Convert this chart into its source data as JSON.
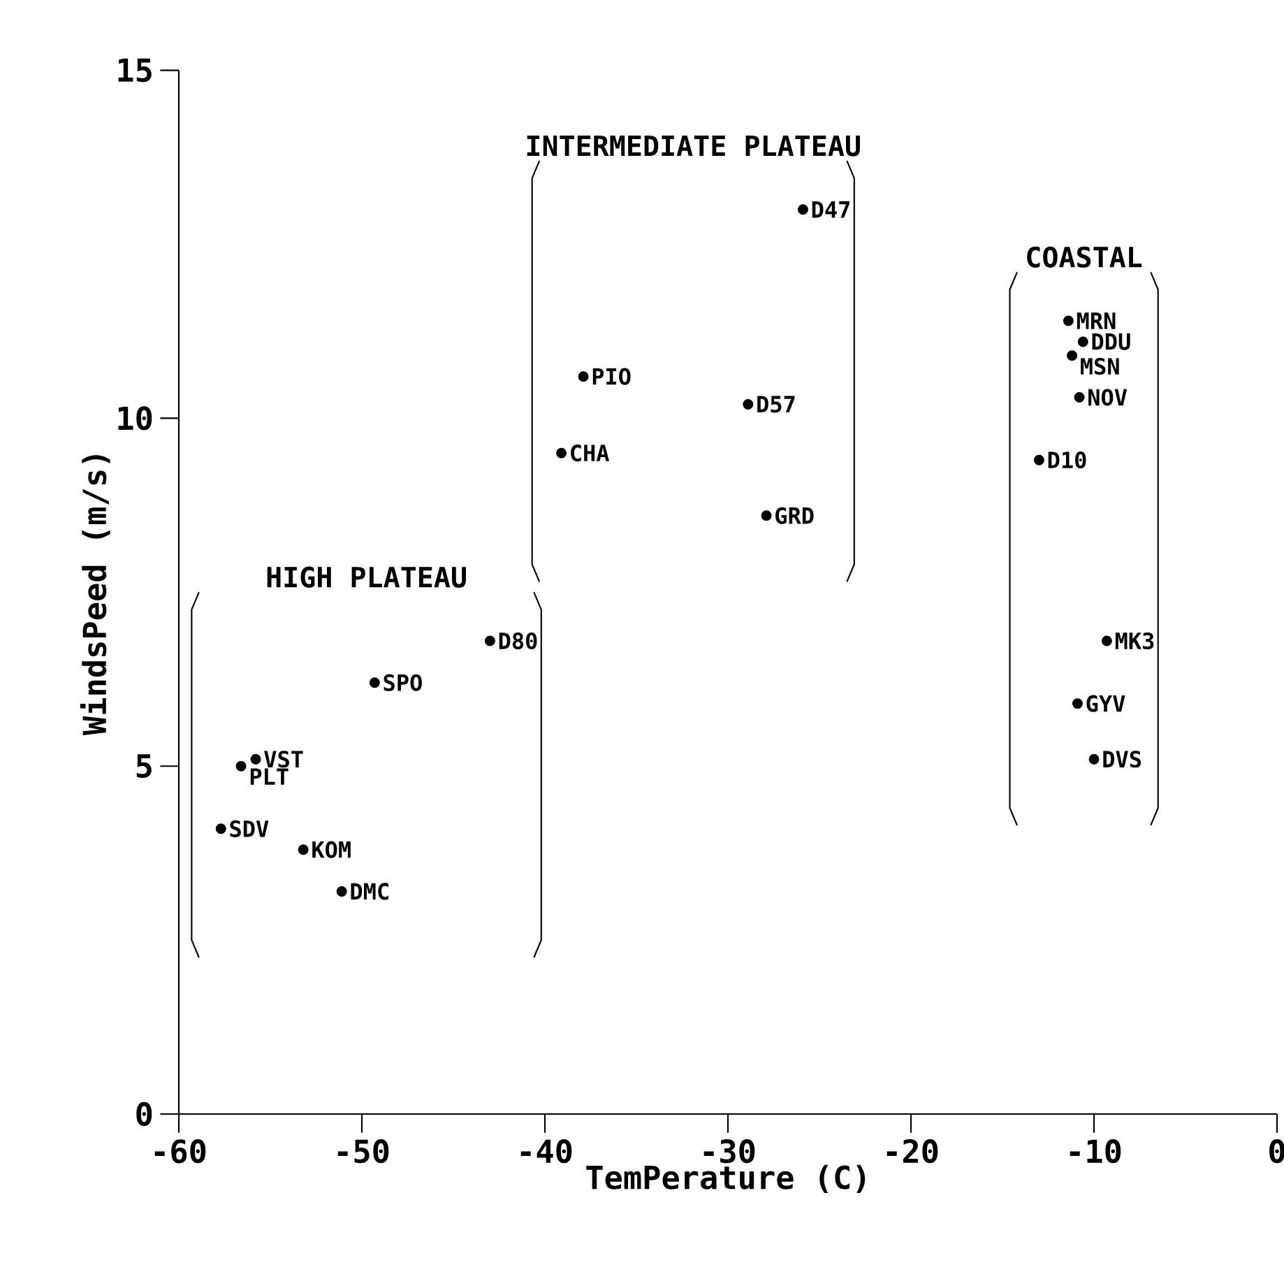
{
  "chart_data": {
    "type": "scatter",
    "xlabel": "TemPerature (C)",
    "ylabel": "WindsPeed (m/s)",
    "xlim": [
      -60,
      0
    ],
    "ylim": [
      0,
      15
    ],
    "xticks": [
      -60,
      -50,
      -40,
      -30,
      -20,
      -10,
      0
    ],
    "yticks": [
      0,
      5,
      10,
      15
    ],
    "marker": "circle",
    "grid": false,
    "legend": false,
    "series": [
      {
        "name": "HIGH PLATEAU",
        "color": "#000000",
        "x": [
          -43,
          -49.3,
          -55.8,
          -56.6,
          -57.7,
          -53.2,
          -51.1
        ],
        "values": [
          6.8,
          6.2,
          5.1,
          5.0,
          4.1,
          3.8,
          3.2
        ]
      },
      {
        "name": "INTERMEDIATE PLATEAU",
        "color": "#000000",
        "x": [
          -25.9,
          -37.9,
          -28.9,
          -39.1,
          -27.9
        ],
        "values": [
          13.0,
          10.6,
          10.2,
          9.5,
          8.6
        ]
      },
      {
        "name": "COASTAL",
        "color": "#000000",
        "x": [
          -11.4,
          -10.6,
          -11.2,
          -10.8,
          -13.0,
          -9.3,
          -10.9,
          -10.0
        ],
        "values": [
          11.4,
          11.1,
          10.9,
          10.3,
          9.4,
          6.8,
          5.9,
          5.1
        ]
      }
    ],
    "annotations": [
      {
        "text": "D80",
        "x": -43,
        "y": 6.8
      },
      {
        "text": "SPO",
        "x": -49.3,
        "y": 6.2
      },
      {
        "text": "VST",
        "x": -55.8,
        "y": 5.1
      },
      {
        "text": "PLT",
        "x": -56.6,
        "y": 5.0
      },
      {
        "text": "SDV",
        "x": -57.7,
        "y": 4.1
      },
      {
        "text": "KOM",
        "x": -53.2,
        "y": 3.8
      },
      {
        "text": "DMC",
        "x": -51.1,
        "y": 3.2
      },
      {
        "text": "D47",
        "x": -25.9,
        "y": 13.0
      },
      {
        "text": "PIO",
        "x": -37.9,
        "y": 10.6
      },
      {
        "text": "D57",
        "x": -28.9,
        "y": 10.2
      },
      {
        "text": "CHA",
        "x": -39.1,
        "y": 9.5
      },
      {
        "text": "GRD",
        "x": -27.9,
        "y": 8.6
      },
      {
        "text": "MRN",
        "x": -11.4,
        "y": 11.4
      },
      {
        "text": "DDU",
        "x": -10.6,
        "y": 11.1
      },
      {
        "text": "MSN",
        "x": -11.2,
        "y": 10.9
      },
      {
        "text": "NOV",
        "x": -10.8,
        "y": 10.3
      },
      {
        "text": "D10",
        "x": -13.0,
        "y": 9.4
      },
      {
        "text": "MK3",
        "x": -9.3,
        "y": 6.8
      },
      {
        "text": "GYV",
        "x": -10.9,
        "y": 5.9
      },
      {
        "text": "DVS",
        "x": -10.0,
        "y": 5.1
      }
    ]
  }
}
